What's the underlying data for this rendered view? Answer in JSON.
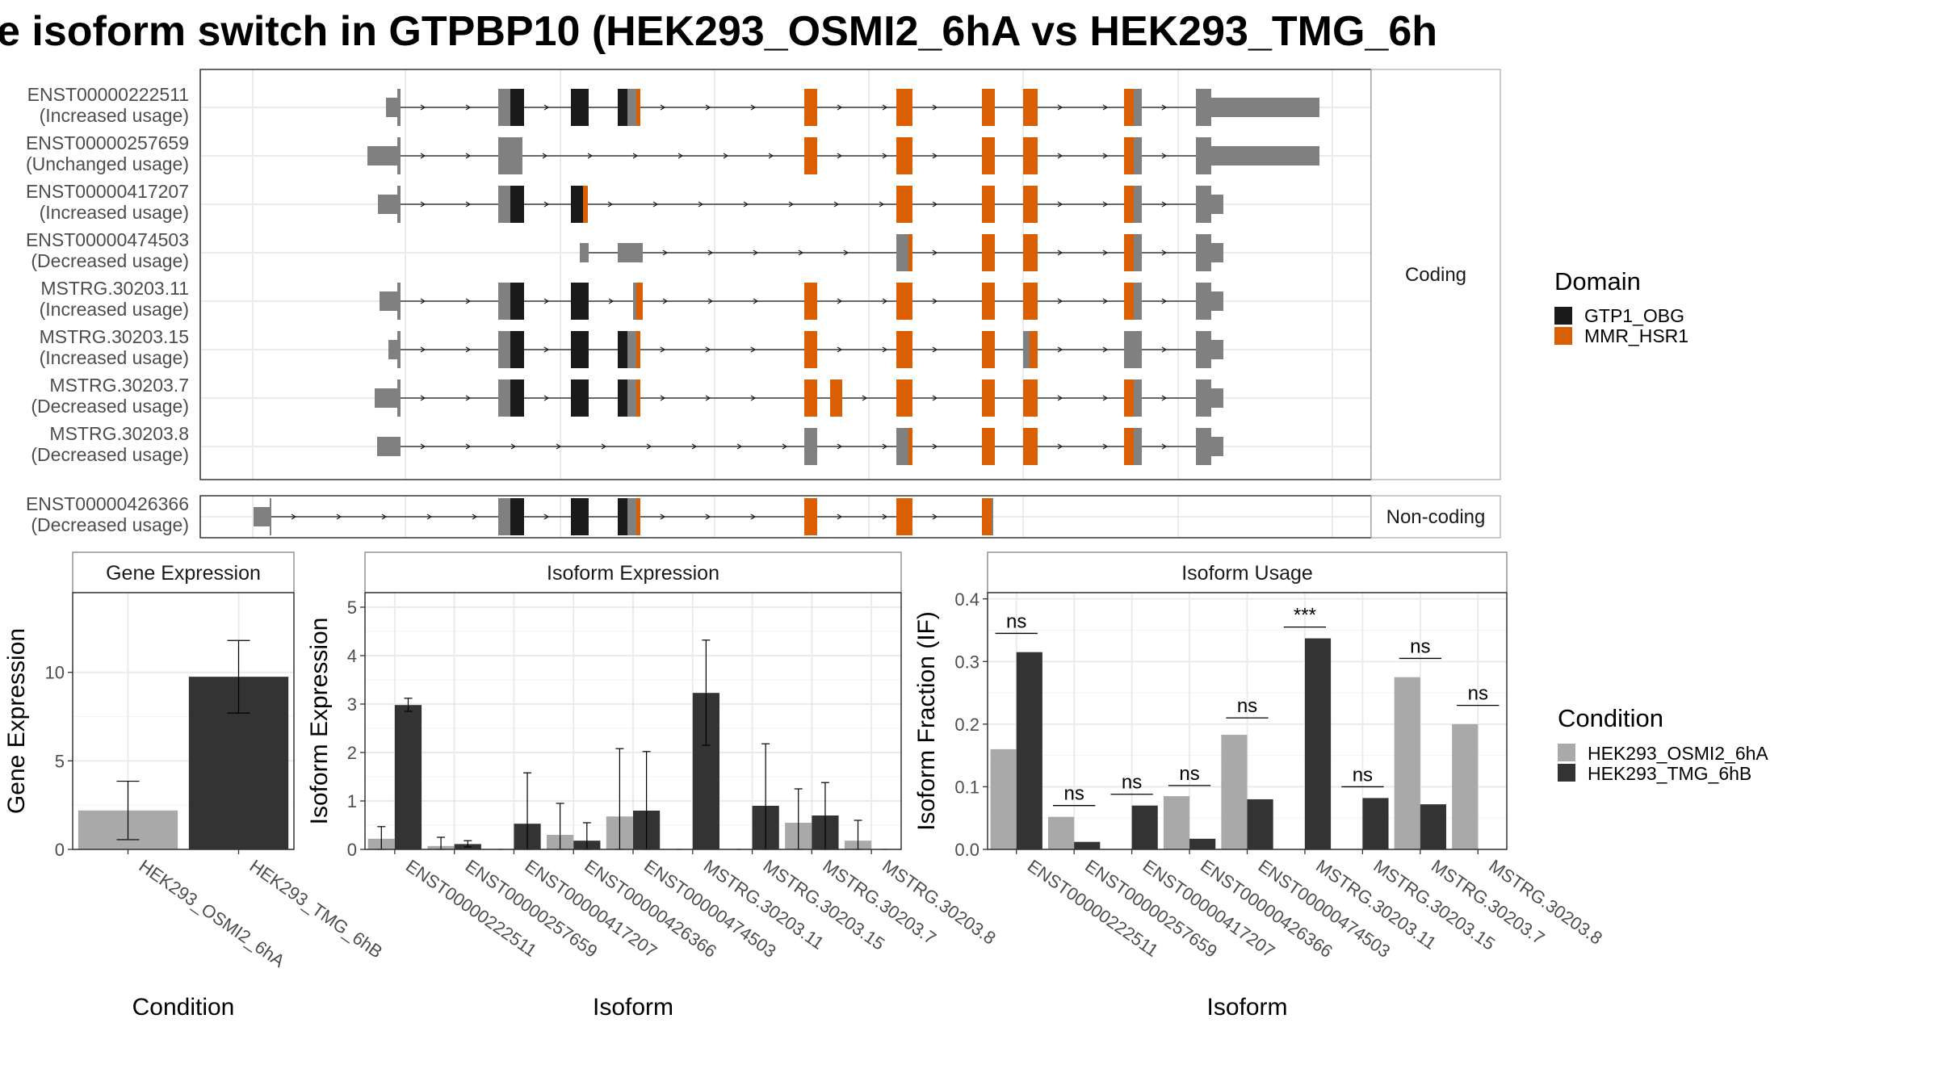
{
  "title": "e isoform switch in GTPBP10 (HEK293_OSMI2_6hA vs HEK293_TMG_6h",
  "colors": {
    "utr": "#808080",
    "gtp1_obg": "#1a1a1a",
    "mmr_hsr1": "#d95f02",
    "cond_a": "#a9a9a9",
    "cond_b": "#333333",
    "grid": "#ebebeb",
    "strip_bg": "#ffffff",
    "panel_border": "#333333"
  },
  "structure": {
    "coding_label": "Coding",
    "noncoding_label": "Non-coding",
    "transcripts": [
      {
        "id": "ENST00000222511",
        "usage": "(Increased usage)",
        "group": "coding"
      },
      {
        "id": "ENST00000257659",
        "usage": "(Unchanged usage)",
        "group": "coding"
      },
      {
        "id": "ENST00000417207",
        "usage": "(Increased usage)",
        "group": "coding"
      },
      {
        "id": "ENST00000474503",
        "usage": "(Decreased usage)",
        "group": "coding"
      },
      {
        "id": "MSTRG.30203.11",
        "usage": "(Increased usage)",
        "group": "coding"
      },
      {
        "id": "MSTRG.30203.15",
        "usage": "(Increased usage)",
        "group": "coding"
      },
      {
        "id": "MSTRG.30203.7",
        "usage": "(Decreased usage)",
        "group": "coding"
      },
      {
        "id": "MSTRG.30203.8",
        "usage": "(Decreased usage)",
        "group": "coding"
      },
      {
        "id": "ENST00000426366",
        "usage": "(Decreased usage)",
        "group": "noncoding"
      }
    ],
    "domain_legend": {
      "title": "Domain",
      "items": [
        {
          "label": "GTP1_OBG",
          "color": "#1a1a1a"
        },
        {
          "label": "MMR_HSR1",
          "color": "#d95f02"
        }
      ]
    }
  },
  "chart_data": [
    {
      "type": "bar",
      "title": "Gene Expression",
      "xlabel": "Condition",
      "ylabel": "Gene Expression",
      "ylim": [
        0,
        14.5
      ],
      "yticks": [
        0,
        5,
        10
      ],
      "categories": [
        "HEK293_OSMI2_6hA",
        "HEK293_TMG_6hB"
      ],
      "values": [
        2.2,
        9.75
      ],
      "err_low": [
        0.55,
        7.7
      ],
      "err_high": [
        3.85,
        11.8
      ]
    },
    {
      "type": "bar",
      "title": "Isoform Expression",
      "xlabel": "Isoform",
      "ylabel": "Isoform Expression",
      "ylim": [
        0,
        5.3
      ],
      "yticks": [
        0,
        1,
        2,
        3,
        4,
        5
      ],
      "categories": [
        "ENST00000222511",
        "ENST00000257659",
        "ENST00000417207",
        "ENST00000426366",
        "ENST00000474503",
        "MSTRG.30203.11",
        "MSTRG.30203.15",
        "MSTRG.30203.7",
        "MSTRG.30203.8"
      ],
      "series": [
        {
          "name": "HEK293_OSMI2_6hA",
          "values": [
            0.22,
            0.07,
            0.0,
            0.3,
            0.68,
            0.0,
            0.0,
            0.55,
            0.18
          ],
          "err_low": [
            0.0,
            0.0,
            0.0,
            0.0,
            0.0,
            0.0,
            0.0,
            0.0,
            0.0
          ],
          "err_high": [
            0.47,
            0.25,
            0.0,
            0.95,
            2.08,
            0.0,
            0.0,
            1.25,
            0.6
          ]
        },
        {
          "name": "HEK293_TMG_6hB",
          "values": [
            2.98,
            0.11,
            0.53,
            0.18,
            0.8,
            3.23,
            0.9,
            0.7,
            0.0
          ],
          "err_low": [
            2.85,
            0.05,
            0.0,
            0.0,
            0.0,
            2.15,
            0.0,
            0.0,
            0.0
          ],
          "err_high": [
            3.12,
            0.18,
            1.58,
            0.55,
            2.02,
            4.32,
            2.18,
            1.38,
            0.0
          ]
        }
      ]
    },
    {
      "type": "bar",
      "title": "Isoform Usage",
      "xlabel": "Isoform",
      "ylabel": "Isoform Fraction (IF)",
      "ylim": [
        0,
        0.41
      ],
      "yticks": [
        0.0,
        0.1,
        0.2,
        0.3,
        0.4
      ],
      "categories": [
        "ENST00000222511",
        "ENST00000257659",
        "ENST00000417207",
        "ENST00000426366",
        "ENST00000474503",
        "MSTRG.30203.11",
        "MSTRG.30203.15",
        "MSTRG.30203.7",
        "MSTRG.30203.8"
      ],
      "series": [
        {
          "name": "HEK293_OSMI2_6hA",
          "values": [
            0.16,
            0.052,
            0.0,
            0.085,
            0.183,
            0.0,
            0.0,
            0.275,
            0.2
          ]
        },
        {
          "name": "HEK293_TMG_6hB",
          "values": [
            0.315,
            0.012,
            0.07,
            0.017,
            0.08,
            0.337,
            0.082,
            0.072,
            0.0
          ]
        }
      ],
      "significance": [
        "ns",
        "ns",
        "ns",
        "ns",
        "ns",
        "***",
        "ns",
        "ns",
        "ns"
      ],
      "sig_y": [
        0.345,
        0.07,
        0.088,
        0.102,
        0.21,
        0.355,
        0.1,
        0.305,
        0.23
      ]
    }
  ],
  "condition_legend": {
    "title": "Condition",
    "items": [
      {
        "label": "HEK293_OSMI2_6hA",
        "color": "#a9a9a9"
      },
      {
        "label": "HEK293_TMG_6hB",
        "color": "#333333"
      }
    ]
  }
}
